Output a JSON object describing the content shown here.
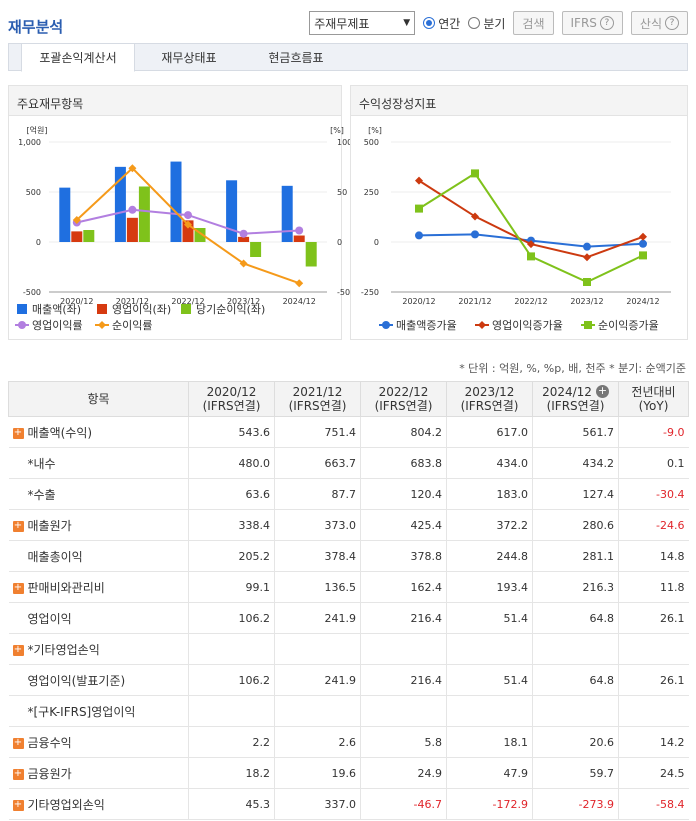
{
  "page": {
    "title": "재무분석",
    "select_value": "주재무제표",
    "radio_annual": "연간",
    "radio_quarter": "분기",
    "search_button": "검색",
    "ifrs_button": "IFRS",
    "formula_button": "산식",
    "help_glyph": "?"
  },
  "tabs": [
    {
      "label": "포괄손익계산서",
      "active": true
    },
    {
      "label": "재무상태표",
      "active": false
    },
    {
      "label": "현금흐름표",
      "active": false
    }
  ],
  "chart_left_title": "주요재무항목",
  "chart_right_title": "수익성장성지표",
  "chart_data": [
    {
      "type": "bar",
      "categories": [
        "2020/12",
        "2021/12",
        "2022/12",
        "2023/12",
        "2024/12"
      ],
      "ylabel_left": "[억원]",
      "ylabel_right": "[%]",
      "ylim_left": [
        -500,
        1000
      ],
      "ylim_right": [
        -50,
        100
      ],
      "yticks_left": [
        "1,000",
        "500",
        "0",
        "-500"
      ],
      "yticks_right": [
        "100",
        "50",
        "0",
        "-50"
      ],
      "series": [
        {
          "name": "매출액(좌)",
          "kind": "bar",
          "axis": "left",
          "color": "#1f6fe0",
          "values": [
            543.6,
            751.4,
            804.2,
            617.0,
            561.7
          ]
        },
        {
          "name": "영업이익(좌)",
          "kind": "bar",
          "axis": "left",
          "color": "#d63a10",
          "values": [
            106.2,
            241.9,
            216.4,
            51.4,
            64.8
          ]
        },
        {
          "name": "당기순이익(좌)",
          "kind": "bar",
          "axis": "left",
          "color": "#7fc21b",
          "values": [
            120,
            555,
            140,
            -150,
            -245
          ]
        },
        {
          "name": "영업이익률",
          "kind": "line",
          "axis": "right",
          "color": "#b27fe0",
          "values": [
            19.5,
            32.2,
            26.9,
            8.3,
            11.5
          ]
        },
        {
          "name": "순이익률",
          "kind": "line",
          "axis": "right",
          "color": "#f59a1a",
          "values": [
            22,
            73.8,
            17.4,
            -21.5,
            -41.2
          ]
        }
      ]
    },
    {
      "type": "line",
      "categories": [
        "2020/12",
        "2021/12",
        "2022/12",
        "2023/12",
        "2024/12"
      ],
      "ylabel": "[%]",
      "ylim": [
        -250,
        500
      ],
      "yticks": [
        "500",
        "250",
        "0",
        "-250"
      ],
      "series": [
        {
          "name": "매출액증가율",
          "color": "#2a6fd6",
          "marker": "circle",
          "values": [
            33,
            38.2,
            7,
            -23.3,
            -9.0
          ]
        },
        {
          "name": "영업이익증가율",
          "color": "#cc3a10",
          "marker": "diamond",
          "values": [
            307,
            127.8,
            -10.5,
            -76.2,
            26.1
          ]
        },
        {
          "name": "순이익증가율",
          "color": "#7fc21b",
          "marker": "square",
          "values": [
            167,
            343,
            -72,
            -200,
            -67
          ]
        }
      ]
    }
  ],
  "unit_note": "* 단위 : 억원, %, %p, 배, 천주    * 분기: 순액기준",
  "table": {
    "headers": [
      {
        "line1": "항목",
        "line2": ""
      },
      {
        "line1": "2020/12",
        "line2": "(IFRS연결)"
      },
      {
        "line1": "2021/12",
        "line2": "(IFRS연결)"
      },
      {
        "line1": "2022/12",
        "line2": "(IFRS연결)"
      },
      {
        "line1": "2023/12",
        "line2": "(IFRS연결)"
      },
      {
        "line1": "2024/12",
        "line2": "(IFRS연결)"
      },
      {
        "line1": "전년대비",
        "line2": "(YoY)"
      }
    ],
    "plus_glyph": "+",
    "rows": [
      {
        "label": "매출액(수익)",
        "expand": true,
        "values": [
          "543.6",
          "751.4",
          "804.2",
          "617.0",
          "561.7",
          "-9.0"
        ]
      },
      {
        "label": "*내수",
        "expand": false,
        "values": [
          "480.0",
          "663.7",
          "683.8",
          "434.0",
          "434.2",
          "0.1"
        ]
      },
      {
        "label": "*수출",
        "expand": false,
        "values": [
          "63.6",
          "87.7",
          "120.4",
          "183.0",
          "127.4",
          "-30.4"
        ]
      },
      {
        "label": "매출원가",
        "expand": true,
        "values": [
          "338.4",
          "373.0",
          "425.4",
          "372.2",
          "280.6",
          "-24.6"
        ]
      },
      {
        "label": "매출총이익",
        "expand": false,
        "values": [
          "205.2",
          "378.4",
          "378.8",
          "244.8",
          "281.1",
          "14.8"
        ]
      },
      {
        "label": "판매비와관리비",
        "expand": true,
        "values": [
          "99.1",
          "136.5",
          "162.4",
          "193.4",
          "216.3",
          "11.8"
        ]
      },
      {
        "label": "영업이익",
        "expand": false,
        "values": [
          "106.2",
          "241.9",
          "216.4",
          "51.4",
          "64.8",
          "26.1"
        ]
      },
      {
        "label": "*기타영업손익",
        "expand": true,
        "values": [
          "",
          "",
          "",
          "",
          "",
          ""
        ]
      },
      {
        "label": "영업이익(발표기준)",
        "expand": false,
        "values": [
          "106.2",
          "241.9",
          "216.4",
          "51.4",
          "64.8",
          "26.1"
        ]
      },
      {
        "label": "*[구K-IFRS]영업이익",
        "expand": false,
        "values": [
          "",
          "",
          "",
          "",
          "",
          ""
        ]
      },
      {
        "label": "금융수익",
        "expand": true,
        "values": [
          "2.2",
          "2.6",
          "5.8",
          "18.1",
          "20.6",
          "14.2"
        ]
      },
      {
        "label": "금융원가",
        "expand": true,
        "values": [
          "18.2",
          "19.6",
          "24.9",
          "47.9",
          "59.7",
          "24.5"
        ]
      },
      {
        "label": "기타영업외손익",
        "expand": true,
        "values": [
          "45.3",
          "337.0",
          "-46.7",
          "-172.9",
          "-273.9",
          "-58.4"
        ]
      }
    ]
  }
}
